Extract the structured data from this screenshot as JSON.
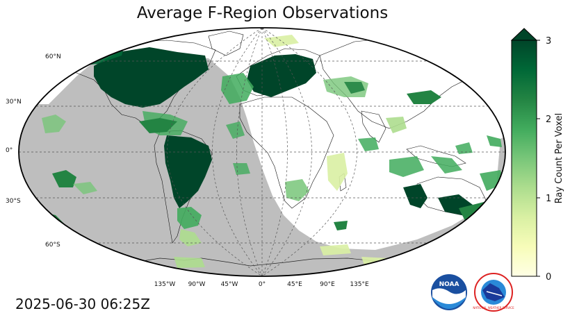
{
  "title": "Average F-Region Observations",
  "timestamp": "2025-06-30 06:25Z",
  "lat_labels": [
    "60°N",
    "30°N",
    "0°",
    "30°S",
    "60°S"
  ],
  "lon_labels": [
    "135°W",
    "90°W",
    "45°W",
    "0°",
    "45°E",
    "90°E",
    "135°E"
  ],
  "colorbar": {
    "label": "Ray Count Per Voxel",
    "ticks": [
      "0",
      "1",
      "2",
      "3"
    ],
    "min": 0,
    "max": 3,
    "colors": [
      "#ffffe5",
      "#f7fcb9",
      "#d9f0a3",
      "#addd8e",
      "#78c679",
      "#41ab5d",
      "#238443",
      "#006837",
      "#004529"
    ]
  },
  "colors": {
    "night": "#bebebe",
    "ocean_day": "#ffffff",
    "coast": "#000000",
    "grid": "#555555"
  },
  "logos": {
    "noaa": "NOAA",
    "nws": "NATIONAL WEATHER SERVICE"
  }
}
